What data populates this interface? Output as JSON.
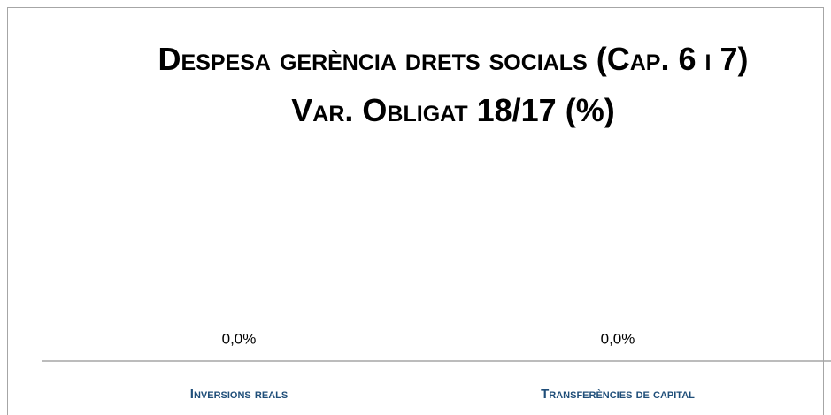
{
  "chart_data": {
    "type": "bar",
    "title": "Despesa gerència drets socials (Cap. 6 i 7) Var. Obligat 18/17 (%)",
    "categories": [
      "Inversions reals",
      "Transferències de capital"
    ],
    "values": [
      0,
      0
    ],
    "value_labels": [
      "0,0%",
      "0,0%"
    ],
    "color": "#4472c4"
  }
}
